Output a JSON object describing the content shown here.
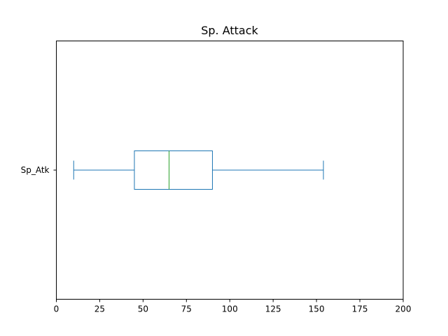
{
  "chart_data": {
    "type": "boxplot",
    "title": "Sp. Attack",
    "orientation": "horizontal",
    "categories": [
      "Sp_Atk"
    ],
    "boxes": [
      {
        "name": "Sp_Atk",
        "whisker_low": 10,
        "q1": 45,
        "median": 65,
        "q3": 90,
        "whisker_high": 154
      }
    ],
    "xlim": [
      0,
      200
    ],
    "xticks": [
      0,
      25,
      50,
      75,
      100,
      125,
      150,
      175,
      200
    ],
    "xlabel": "",
    "ylabel": "",
    "grid": false,
    "colors": {
      "box": "#1f77b4",
      "median": "#2ca02c",
      "axes": "#000000"
    }
  }
}
